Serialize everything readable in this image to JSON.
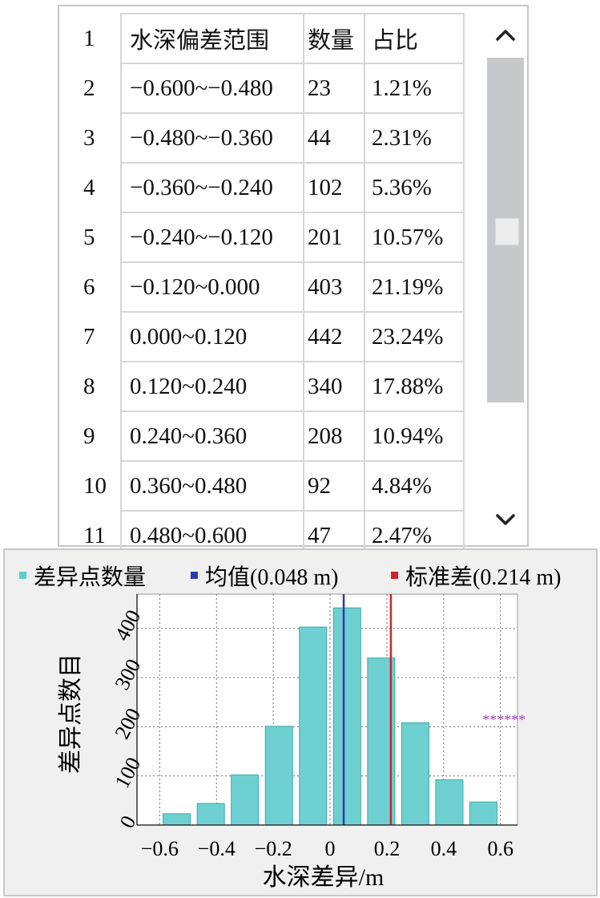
{
  "table": {
    "header": {
      "index": "1",
      "range": "水深偏差范围",
      "count": "数量",
      "percent": "占比"
    },
    "rows": [
      {
        "index": "2",
        "range": "−0.600~−0.480",
        "count": "23",
        "percent": "1.21%"
      },
      {
        "index": "3",
        "range": "−0.480~−0.360",
        "count": "44",
        "percent": "2.31%"
      },
      {
        "index": "4",
        "range": "−0.360~−0.240",
        "count": "102",
        "percent": "5.36%"
      },
      {
        "index": "5",
        "range": "−0.240~−0.120",
        "count": "201",
        "percent": "10.57%"
      },
      {
        "index": "6",
        "range": "−0.120~0.000",
        "count": "403",
        "percent": "21.19%"
      },
      {
        "index": "7",
        "range": "0.000~0.120",
        "count": "442",
        "percent": "23.24%"
      },
      {
        "index": "8",
        "range": "0.120~0.240",
        "count": "340",
        "percent": "17.88%"
      },
      {
        "index": "9",
        "range": "0.240~0.360",
        "count": "208",
        "percent": "10.94%"
      },
      {
        "index": "10",
        "range": "0.360~0.480",
        "count": "92",
        "percent": "4.84%"
      },
      {
        "index": "11",
        "range": "0.480~0.600",
        "count": "47",
        "percent": "2.47%"
      }
    ],
    "scroll_up_icon": "chevron-up-icon",
    "scroll_down_icon": "chevron-down-icon"
  },
  "chart_data": {
    "type": "bar",
    "bins": [
      [
        -0.6,
        -0.48
      ],
      [
        -0.48,
        -0.36
      ],
      [
        -0.36,
        -0.24
      ],
      [
        -0.24,
        -0.12
      ],
      [
        -0.12,
        0.0
      ],
      [
        0.0,
        0.12
      ],
      [
        0.12,
        0.24
      ],
      [
        0.24,
        0.36
      ],
      [
        0.36,
        0.48
      ],
      [
        0.48,
        0.6
      ]
    ],
    "values": [
      23,
      44,
      102,
      201,
      403,
      442,
      340,
      208,
      92,
      47
    ],
    "xlabel": "水深差异/m",
    "ylabel": "差异点数目",
    "xlim": [
      -0.68,
      0.66
    ],
    "ylim": [
      0,
      470
    ],
    "xticks": [
      -0.6,
      -0.4,
      -0.2,
      0,
      0.2,
      0.4,
      0.6
    ],
    "xtick_labels": [
      "−0.6",
      "−0.4",
      "−0.2",
      "0",
      "0.2",
      "0.4",
      "0.6"
    ],
    "yticks": [
      0,
      100,
      200,
      300,
      400
    ],
    "ytick_labels": [
      "0",
      "100",
      "200",
      "300",
      "400"
    ],
    "grid": true,
    "legend": [
      {
        "label": "差异点数量",
        "color": "#5ecdcf"
      },
      {
        "label": "均值(0.048 m)",
        "color": "#2b3bb0"
      },
      {
        "label": "标准差(0.214 m)",
        "color": "#d6202a"
      }
    ],
    "mean": 0.048,
    "std": 0.214,
    "bar_color": "#6fd0d2",
    "bar_edge": "#3aa9ab",
    "annotation": {
      "text": "******",
      "x": 0.48,
      "y": 215,
      "color": "#a43fc2"
    }
  }
}
